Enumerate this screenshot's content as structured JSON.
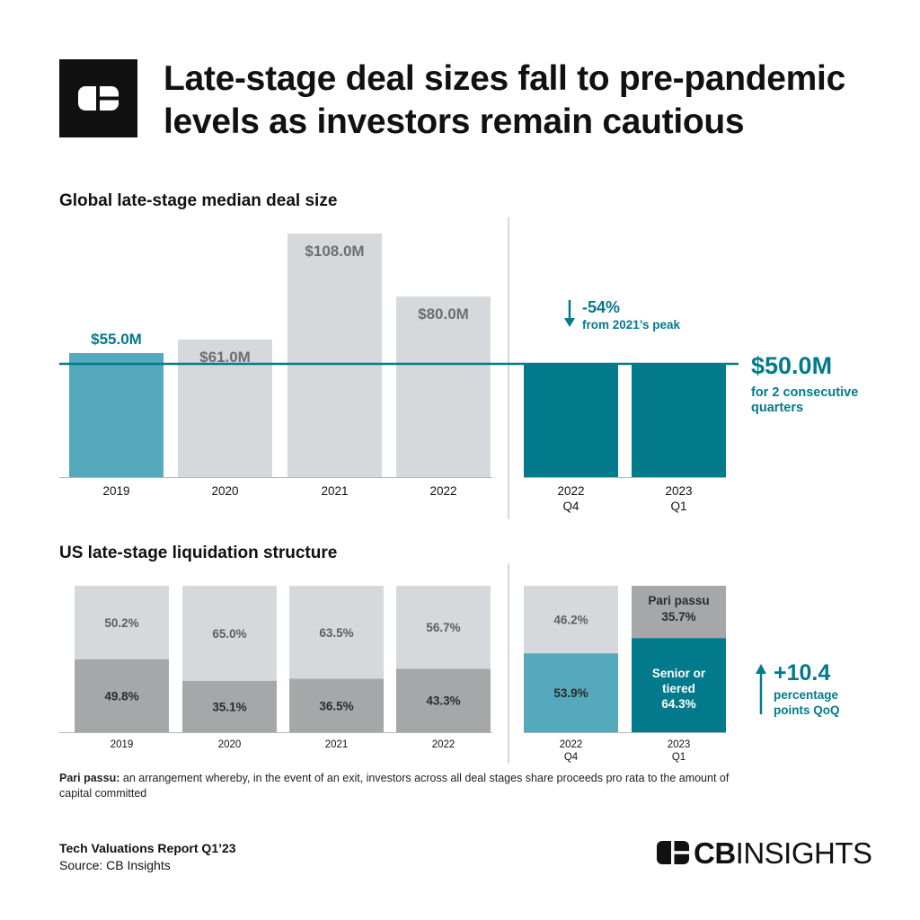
{
  "header": {
    "title": "Late-stage deal sizes fall to pre-pandemic levels as investors remain cautious",
    "logo_icon": "cb-insights-logo-icon"
  },
  "colors": {
    "teal_dark": "#037A8B",
    "teal_light": "#55A9BC",
    "gray_light": "#D6D9DB",
    "gray_mid": "#A5A7A9",
    "text_dark": "#111111",
    "label_gray": "#6E6E6E"
  },
  "chart_data": [
    {
      "type": "bar",
      "title": "Global late-stage median deal size",
      "categories": [
        "2019",
        "2020",
        "2021",
        "2022",
        "2022\nQ4",
        "2023\nQ1"
      ],
      "values": [
        55.0,
        61.0,
        108.0,
        80.0,
        50.0,
        50.0
      ],
      "value_labels": [
        "$55.0M",
        "$61.0M",
        "$108.0M",
        "$80.0M",
        "",
        ""
      ],
      "unit": "$M",
      "reference_line": {
        "value": 50.0,
        "label": "$50.0M",
        "sublabel": "for 2 consecutive quarters"
      },
      "annotation": {
        "value_label": "-54%",
        "text": "from 2021’s peak",
        "icon": "arrow-down-icon"
      },
      "ylim": [
        0,
        115
      ]
    },
    {
      "type": "bar",
      "stacked": true,
      "title": "US late-stage liquidation structure",
      "categories": [
        "2019",
        "2020",
        "2021",
        "2022",
        "2022\nQ4",
        "2023\nQ1"
      ],
      "series": [
        {
          "values": [
            49.8,
            35.1,
            36.5,
            43.3,
            53.9,
            64.3
          ],
          "labels": [
            "49.8%",
            "35.1%",
            "36.5%",
            "43.3%",
            "53.9%",
            "64.3%"
          ],
          "highlight_name": "Senior or tiered"
        },
        {
          "values": [
            50.2,
            65.0,
            63.5,
            56.7,
            46.2,
            35.7
          ],
          "labels": [
            "50.2%",
            "65.0%",
            "63.5%",
            "56.7%",
            "46.2%",
            "35.7%"
          ],
          "highlight_name": "Pari passu"
        }
      ],
      "unit": "%",
      "ylim": [
        0,
        100
      ],
      "annotation": {
        "value_label": "+10.4",
        "text": "percentage points QoQ",
        "icon": "arrow-up-icon"
      }
    }
  ],
  "footnote": {
    "term": "Pari passu:",
    "text": "an arrangement whereby, in the event of an exit, investors across all deal stages share proceeds pro rata to the amount of capital committed"
  },
  "footer": {
    "report": "Tech Valuations Report Q1’23",
    "source": "Source: CB Insights",
    "brand_bold": "CB",
    "brand_rest": "INSIGHTS",
    "brand_icon": "cb-insights-logo-icon"
  }
}
